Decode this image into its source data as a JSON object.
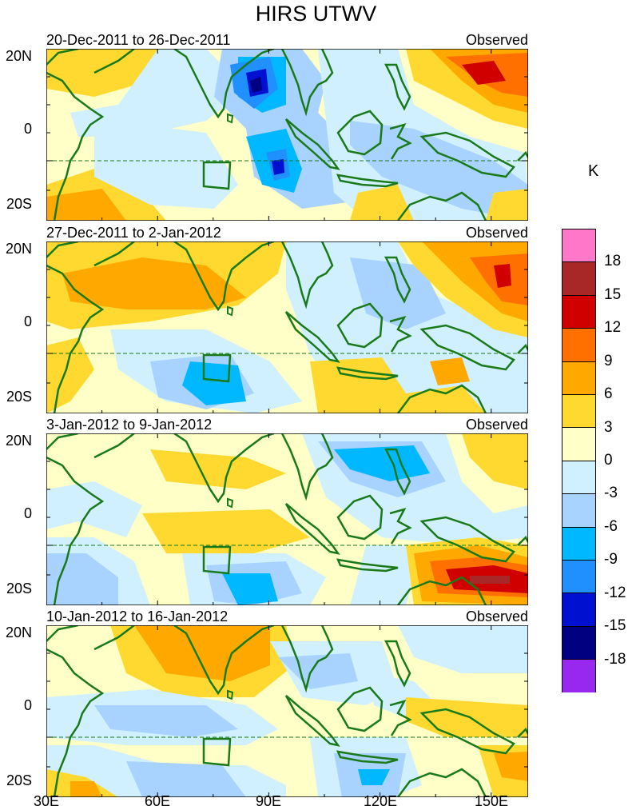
{
  "title": "HIRS UTWV",
  "colorbar": {
    "unit": "K",
    "labels": [
      "18",
      "15",
      "12",
      "9",
      "6",
      "3",
      "0",
      "-3",
      "-6",
      "-9",
      "-12",
      "-15",
      "-18"
    ],
    "colors": [
      "#ff77c8",
      "#a82828",
      "#d00000",
      "#ff7000",
      "#ffa800",
      "#ffd830",
      "#ffffc8",
      "#d0f0ff",
      "#a8d2ff",
      "#00b8ff",
      "#2090ff",
      "#0010d0",
      "#000080",
      "#9828f0"
    ]
  },
  "axes": {
    "y_ticks": [
      "20N",
      "0",
      "20S"
    ],
    "x_ticks": [
      "30E",
      "60E",
      "90E",
      "120E",
      "150E"
    ]
  },
  "panels": [
    {
      "period": "20-Dec-2011 to 26-Dec-2011",
      "tag": "Observed"
    },
    {
      "period": "27-Dec-2011 to 2-Jan-2012",
      "tag": "Observed"
    },
    {
      "period": "3-Jan-2012 to 9-Jan-2012",
      "tag": "Observed"
    },
    {
      "period": "10-Jan-2012 to 16-Jan-2012",
      "tag": "Observed"
    }
  ]
}
